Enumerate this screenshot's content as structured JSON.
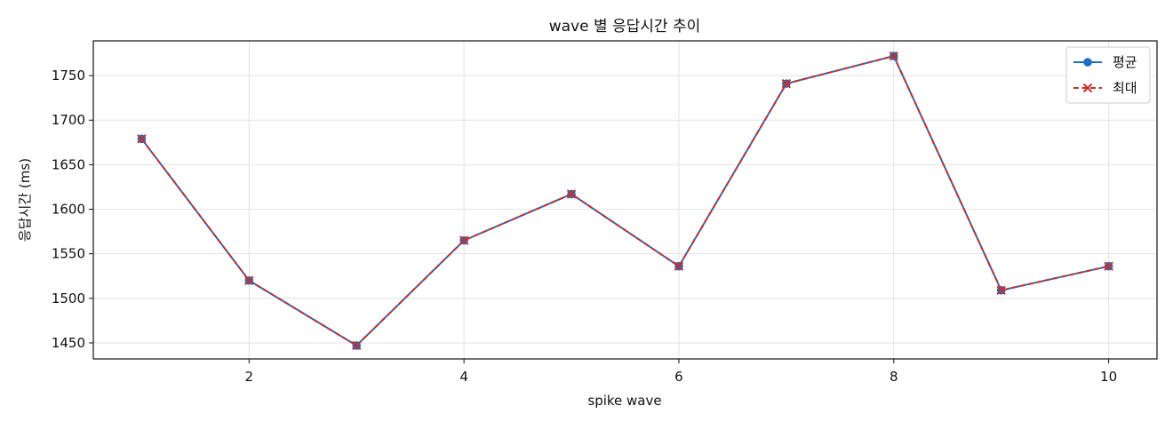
{
  "chart_data": {
    "type": "line",
    "title": "wave 별 응답시간 추이",
    "xlabel": "spike wave",
    "ylabel": "응답시간 (ms)",
    "x": [
      1,
      2,
      3,
      4,
      5,
      6,
      7,
      8,
      9,
      10
    ],
    "xlim": [
      0.55,
      10.45
    ],
    "ylim": [
      1432,
      1789
    ],
    "xticks": [
      2,
      4,
      6,
      8,
      10
    ],
    "yticks": [
      1450,
      1500,
      1550,
      1600,
      1650,
      1700,
      1750
    ],
    "grid": true,
    "legend_position": "top-right",
    "series": [
      {
        "name": "평균",
        "values": [
          1679,
          1520,
          1447,
          1565,
          1617,
          1536,
          1741,
          1772,
          1509,
          1536
        ],
        "color": "#1f6fc0",
        "line_style": "solid",
        "marker": "circle"
      },
      {
        "name": "최대",
        "values": [
          1679,
          1520,
          1447,
          1565,
          1617,
          1536,
          1741,
          1772,
          1509,
          1536
        ],
        "color": "#c62f2f",
        "line_style": "dashed",
        "marker": "x"
      }
    ]
  }
}
